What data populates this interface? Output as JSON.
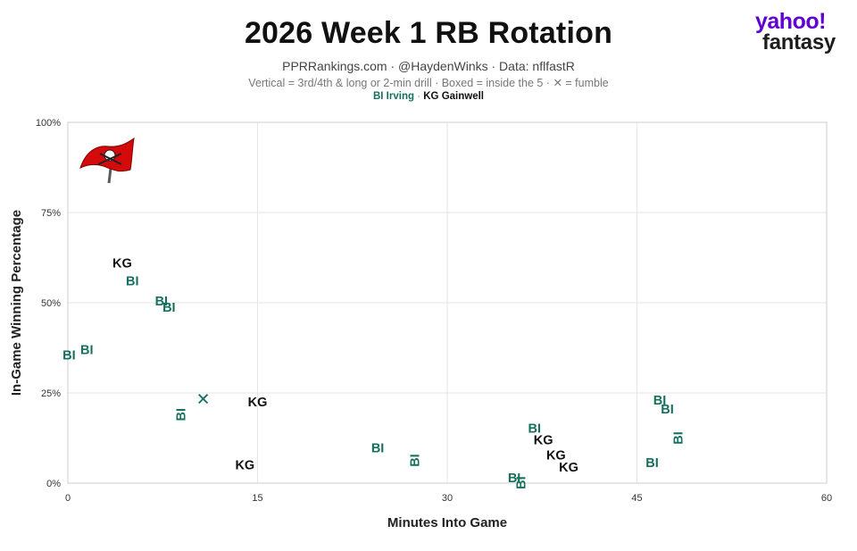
{
  "header": {
    "title": "2026 Week 1 RB Rotation",
    "subtitle": "PPRRankings.com · @HaydenWinks · Data: nflfastR",
    "note": "Vertical = 3rd/4th & long or 2-min drill · Boxed = inside the 5 · ✕ = fumble",
    "legend_bi": "BI Irving",
    "legend_sep": "·",
    "legend_kg": "KG Gainwell"
  },
  "brand": {
    "line1": "yahoo!",
    "line2": "fantasy",
    "color": "#6001d2"
  },
  "team_logo": {
    "icon": "buccaneers-flag-icon",
    "color": "#d50a0a"
  },
  "colors": {
    "BI": "#17705f",
    "KG": "#111111",
    "grid": "#e6e6e6",
    "axis": "#cccccc"
  },
  "chart_data": {
    "type": "scatter",
    "title": "2026 Week 1 RB Rotation",
    "xlabel": "Minutes Into Game",
    "ylabel": "In-Game Winning Percentage",
    "xlim": [
      0,
      60
    ],
    "ylim": [
      0,
      100
    ],
    "xticks": [
      0,
      15,
      30,
      45,
      60
    ],
    "yticks": [
      0,
      25,
      50,
      75,
      100
    ],
    "ytick_labels": [
      "0%",
      "25%",
      "50%",
      "75%",
      "100%"
    ],
    "grid": true,
    "points": [
      {
        "player": "KG",
        "label": "KG",
        "x": 4.3,
        "y": 60.8,
        "vertical": false,
        "fumble": false
      },
      {
        "player": "BI",
        "label": "BI",
        "x": 5.1,
        "y": 55.8,
        "vertical": false,
        "fumble": false
      },
      {
        "player": "BI",
        "label": "BI",
        "x": 7.4,
        "y": 50.3,
        "vertical": false,
        "fumble": false
      },
      {
        "player": "BI",
        "label": "BI",
        "x": 8.0,
        "y": 48.5,
        "vertical": false,
        "fumble": false
      },
      {
        "player": "BI",
        "label": "BI",
        "x": 1.5,
        "y": 36.8,
        "vertical": false,
        "fumble": false
      },
      {
        "player": "BI",
        "label": "BI",
        "x": 0.1,
        "y": 35.3,
        "vertical": false,
        "fumble": false
      },
      {
        "player": "BI",
        "label": "BI",
        "x": 9.0,
        "y": 19.0,
        "vertical": true,
        "fumble": false
      },
      {
        "player": "BI",
        "label": "✕",
        "x": 10.7,
        "y": 23.0,
        "vertical": false,
        "fumble": true
      },
      {
        "player": "KG",
        "label": "KG",
        "x": 15.0,
        "y": 22.3,
        "vertical": false,
        "fumble": false
      },
      {
        "player": "KG",
        "label": "KG",
        "x": 14.0,
        "y": 4.8,
        "vertical": false,
        "fumble": false
      },
      {
        "player": "BI",
        "label": "BI",
        "x": 24.5,
        "y": 9.5,
        "vertical": false,
        "fumble": false
      },
      {
        "player": "BI",
        "label": "BI",
        "x": 27.5,
        "y": 6.3,
        "vertical": true,
        "fumble": false
      },
      {
        "player": "BI",
        "label": "BI",
        "x": 35.3,
        "y": 1.2,
        "vertical": false,
        "fumble": false
      },
      {
        "player": "BI",
        "label": "BI",
        "x": 35.9,
        "y": 0.1,
        "vertical": true,
        "fumble": false
      },
      {
        "player": "BI",
        "label": "BI",
        "x": 36.9,
        "y": 15.0,
        "vertical": false,
        "fumble": false
      },
      {
        "player": "KG",
        "label": "KG",
        "x": 37.6,
        "y": 11.8,
        "vertical": false,
        "fumble": false
      },
      {
        "player": "KG",
        "label": "KG",
        "x": 38.6,
        "y": 7.5,
        "vertical": false,
        "fumble": false
      },
      {
        "player": "KG",
        "label": "KG",
        "x": 39.6,
        "y": 4.2,
        "vertical": false,
        "fumble": false
      },
      {
        "player": "BI",
        "label": "BI",
        "x": 46.2,
        "y": 5.5,
        "vertical": false,
        "fumble": false
      },
      {
        "player": "BI",
        "label": "BI",
        "x": 46.8,
        "y": 22.8,
        "vertical": false,
        "fumble": false
      },
      {
        "player": "BI",
        "label": "BI",
        "x": 47.4,
        "y": 20.3,
        "vertical": false,
        "fumble": false
      },
      {
        "player": "BI",
        "label": "BI",
        "x": 48.3,
        "y": 12.5,
        "vertical": true,
        "fumble": false
      }
    ]
  }
}
